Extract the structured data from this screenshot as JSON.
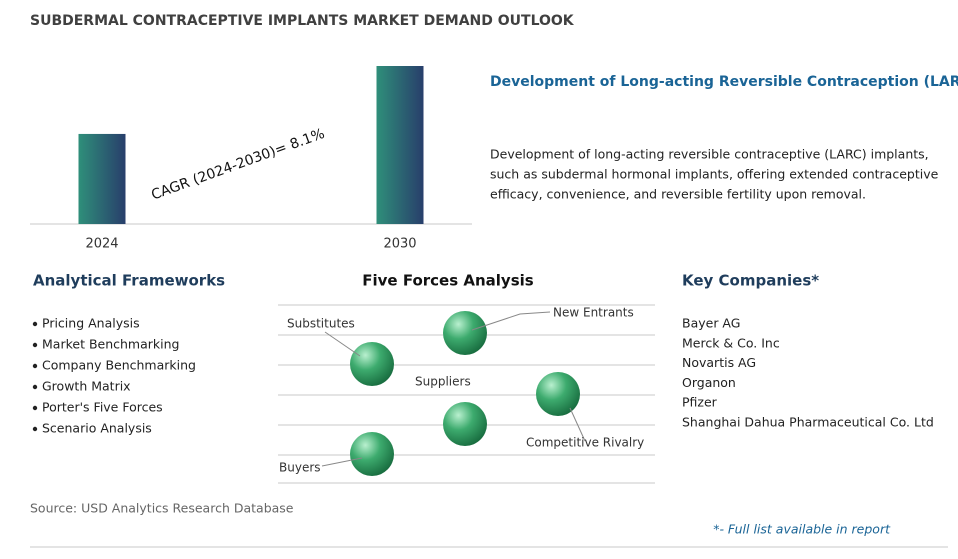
{
  "header": {
    "title": "SUBDERMAL CONTRACEPTIVE IMPLANTS MARKET DEMAND OUTLOOK"
  },
  "market_chart": {
    "type": "bar",
    "categories": [
      "2024",
      "2030"
    ],
    "values": [
      57,
      100
    ],
    "ylim": [
      0,
      100
    ],
    "annotation": "CAGR (2024-2030)=  8.1%"
  },
  "highlight": {
    "title": "Development of Long-acting Reversible Contraception (LARC)",
    "lines": [
      "Development of long-acting reversible contraceptive (LARC) implants,",
      "such as subdermal hormonal implants, offering extended contraceptive",
      "efficacy, convenience, and reversible fertility upon removal."
    ]
  },
  "frameworks": {
    "title": "Analytical Frameworks",
    "items": [
      "Pricing Analysis",
      "Market Benchmarking",
      "Company Benchmarking",
      "Growth Matrix",
      "Porter's Five Forces",
      "Scenario Analysis"
    ]
  },
  "five_forces": {
    "title": "Five Forces Analysis",
    "forces": [
      "Substitutes",
      "New Entrants",
      "Suppliers",
      "Competitive Rivalry",
      "Buyers"
    ]
  },
  "companies": {
    "title": "Key Companies*",
    "items": [
      "Bayer AG",
      "Merck & Co. Inc",
      "Novartis AG",
      "Organon",
      "Pfizer",
      "Shanghai Dahua Pharmaceutical Co. Ltd"
    ]
  },
  "footer": {
    "source": "Source: USD Analytics Research Database",
    "note": "*- Full list available in report"
  }
}
